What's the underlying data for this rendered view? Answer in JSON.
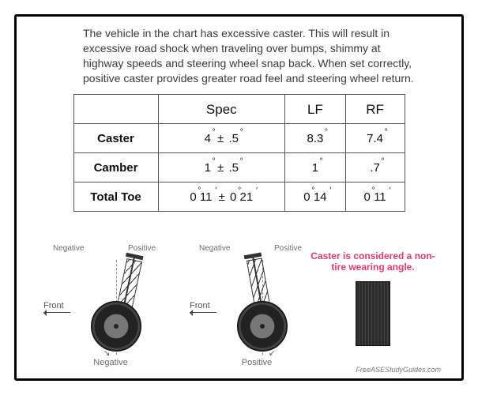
{
  "intro_text": "The vehicle in the chart has excessive caster. This will result in excessive road shock when traveling over bumps, shimmy at highway speeds and steering wheel snap back. When set correctly, positive caster provides greater road feel and steering wheel return.",
  "table": {
    "headers": {
      "spec": "Spec",
      "lf": "LF",
      "rf": "RF"
    },
    "rows": [
      {
        "label": "Caster",
        "spec": {
          "base": "4",
          "unit": "°",
          "pm": true,
          "tol": ".5",
          "tol_unit": "°"
        },
        "lf": {
          "base": "8.3",
          "unit": "°"
        },
        "rf": {
          "base": "7.4",
          "unit": "°"
        }
      },
      {
        "label": "Camber",
        "spec": {
          "base": "1",
          "unit": "°",
          "pm": true,
          "tol": ".5",
          "tol_unit": "°"
        },
        "lf": {
          "base": "1",
          "unit": "°"
        },
        "rf": {
          "base": ".7",
          "unit": "°"
        }
      },
      {
        "label": "Total Toe",
        "spec": {
          "base_deg": "0",
          "base_min": "11",
          "unit": "′",
          "pm": true,
          "tol_deg": "0",
          "tol_min": "21",
          "tol_unit": "′"
        },
        "lf": {
          "base_deg": "0",
          "base_min": "14",
          "unit": "′"
        },
        "rf": {
          "base_deg": "0",
          "base_min": "11",
          "unit": "′"
        }
      }
    ]
  },
  "diagrams": {
    "left": {
      "top_left": "Negative",
      "top_right": "Positive",
      "front": "Front",
      "caption": "Negative",
      "tilt_deg": 12
    },
    "right": {
      "top_left": "Negative",
      "top_right": "Positive",
      "front": "Front",
      "caption": "Positive",
      "tilt_deg": -10
    },
    "tread": {
      "callout": "Caster is considered a non-tire wearing angle."
    }
  },
  "source_note": "FreeASEStudyGuides.com",
  "colors": {
    "border": "#000000",
    "table_border": "#555555",
    "callout": "#e23a6d",
    "muted": "#6e6e6e",
    "wheel_dark": "#222222"
  }
}
